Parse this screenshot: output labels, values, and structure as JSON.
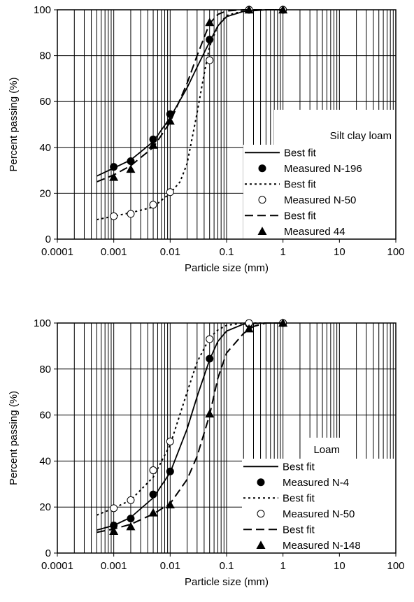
{
  "chart_data": [
    {
      "type": "scatter",
      "title": "",
      "legend_title": "Silt clay loam",
      "xlabel": "Particle size (mm)",
      "ylabel": "Percent passing (%)",
      "xscale": "log",
      "xlim": [
        0.0001,
        100
      ],
      "ylim": [
        0,
        100
      ],
      "xticks": [
        "0.0001",
        "0.001",
        "0.01",
        "0.1",
        "1",
        "10",
        "100"
      ],
      "yticks": [
        "0",
        "20",
        "40",
        "60",
        "80",
        "100"
      ],
      "grid": true,
      "legend_position": "lower-right",
      "series": [
        {
          "name": "Best fit",
          "style": "solid",
          "x": [
            0.0005,
            0.001,
            0.002,
            0.005,
            0.01,
            0.02,
            0.03,
            0.05,
            0.07,
            0.1,
            0.2,
            0.5,
            1
          ],
          "y": [
            27.5,
            31,
            34.5,
            42.5,
            53,
            66,
            75,
            86,
            93,
            97,
            99.3,
            100,
            100
          ]
        },
        {
          "name": "Measured N-196",
          "marker": "filled-circle",
          "x": [
            0.001,
            0.002,
            0.005,
            0.01,
            0.05,
            0.25,
            1
          ],
          "y": [
            31.5,
            34,
            43.5,
            54.5,
            87,
            100,
            100
          ]
        },
        {
          "name": "Best fit",
          "style": "dotted",
          "x": [
            0.0005,
            0.001,
            0.002,
            0.005,
            0.01,
            0.015,
            0.02,
            0.03,
            0.04,
            0.05,
            0.07,
            0.1,
            0.2,
            0.5,
            1
          ],
          "y": [
            8.5,
            10,
            11.5,
            14,
            20,
            25,
            33,
            55,
            72,
            84,
            93,
            97.5,
            99.5,
            100,
            100
          ]
        },
        {
          "name": "Measured N-50",
          "marker": "open-circle",
          "x": [
            0.001,
            0.002,
            0.005,
            0.01,
            0.05,
            0.25,
            1
          ],
          "y": [
            10,
            11,
            15,
            20.5,
            78,
            100,
            100
          ]
        },
        {
          "name": "Best fit",
          "style": "dashed",
          "x": [
            0.0005,
            0.001,
            0.002,
            0.005,
            0.01,
            0.02,
            0.03,
            0.05,
            0.07,
            0.1,
            0.2,
            0.5,
            1
          ],
          "y": [
            25,
            28,
            32,
            40,
            51,
            68,
            80,
            94,
            98,
            99.5,
            100,
            100,
            100
          ]
        },
        {
          "name": "Measured 44",
          "marker": "filled-triangle",
          "x": [
            0.001,
            0.002,
            0.005,
            0.01,
            0.05,
            0.25,
            1
          ],
          "y": [
            27,
            30.5,
            41,
            51.5,
            94.5,
            100,
            100
          ]
        }
      ]
    },
    {
      "type": "scatter",
      "title": "",
      "legend_title": "Loam",
      "xlabel": "Particle size (mm)",
      "ylabel": "Percent passing (%)",
      "xscale": "log",
      "xlim": [
        0.0001,
        100
      ],
      "ylim": [
        0,
        100
      ],
      "xticks": [
        "0.0001",
        "0.001",
        "0.01",
        "0.1",
        "1",
        "10",
        "100"
      ],
      "yticks": [
        "0",
        "20",
        "40",
        "60",
        "80",
        "100"
      ],
      "grid": true,
      "legend_position": "lower-right",
      "series": [
        {
          "name": "Best fit",
          "style": "solid",
          "x": [
            0.0005,
            0.001,
            0.002,
            0.005,
            0.01,
            0.02,
            0.03,
            0.05,
            0.07,
            0.1,
            0.2,
            0.5,
            1
          ],
          "y": [
            10,
            12,
            15.5,
            24,
            35,
            54,
            68,
            84,
            92,
            96.5,
            99.5,
            100,
            100
          ]
        },
        {
          "name": "Measured N-4",
          "marker": "filled-circle",
          "x": [
            0.001,
            0.002,
            0.005,
            0.01,
            0.05,
            0.25,
            1
          ],
          "y": [
            12,
            15,
            25.5,
            35.5,
            84.5,
            99.5,
            100
          ]
        },
        {
          "name": "Best fit",
          "style": "dotted",
          "x": [
            0.0005,
            0.001,
            0.002,
            0.005,
            0.01,
            0.02,
            0.03,
            0.05,
            0.07,
            0.1,
            0.2,
            0.5,
            1
          ],
          "y": [
            16.5,
            19.5,
            23,
            33,
            47,
            70,
            83,
            93.5,
            97,
            99,
            100,
            100,
            100
          ]
        },
        {
          "name": "Measured N-50",
          "marker": "open-circle",
          "x": [
            0.001,
            0.002,
            0.005,
            0.01,
            0.05,
            0.25,
            1
          ],
          "y": [
            19.5,
            23,
            36,
            48.5,
            93,
            100,
            100
          ]
        },
        {
          "name": "Best fit",
          "style": "dashed",
          "x": [
            0.0005,
            0.001,
            0.002,
            0.005,
            0.01,
            0.02,
            0.03,
            0.05,
            0.07,
            0.1,
            0.2,
            0.3,
            0.5,
            1
          ],
          "y": [
            9,
            10.5,
            12.5,
            17,
            21.5,
            32,
            42,
            60,
            76,
            87,
            95.5,
            98.5,
            100,
            100
          ]
        },
        {
          "name": "Measured N-148",
          "marker": "filled-triangle",
          "x": [
            0.001,
            0.002,
            0.005,
            0.01,
            0.05,
            0.25,
            1
          ],
          "y": [
            9.5,
            11.5,
            17.5,
            21,
            60.5,
            97.5,
            100
          ]
        }
      ]
    }
  ]
}
